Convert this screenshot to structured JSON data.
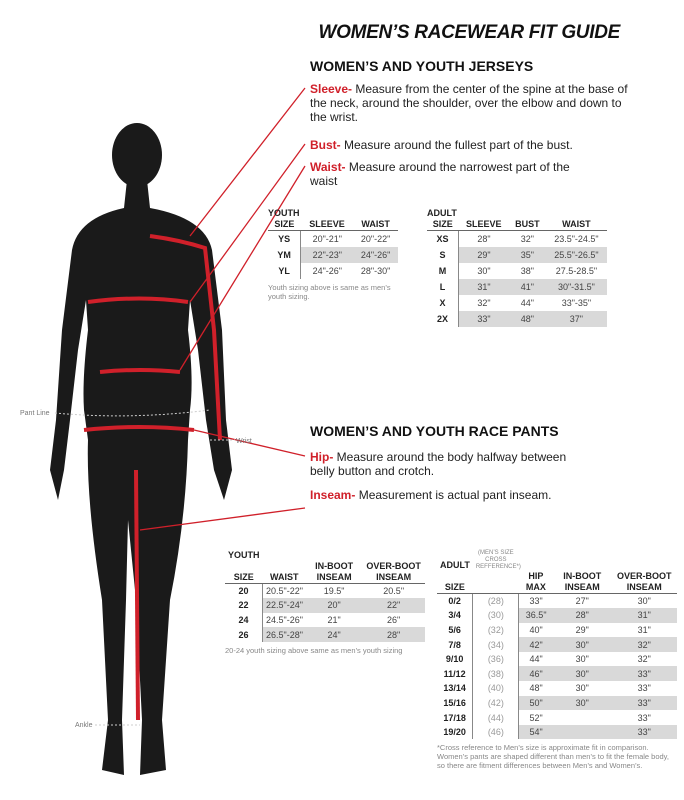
{
  "title": "WOMEN’S RACEWEAR FIT GUIDE",
  "colors": {
    "accent": "#d0202a",
    "silhouette": "#1a1a1a",
    "shade": "#d9d9d9"
  },
  "jerseys": {
    "heading": "WOMEN’S AND YOUTH JERSEYS",
    "measures": [
      {
        "term": "Sleeve-",
        "text": " Measure from the center of the spine at the base of the neck, around the shoulder, over the elbow and down to the wrist."
      },
      {
        "term": "Bust-",
        "text": " Measure around the fullest part of the bust."
      },
      {
        "term": "Waist-",
        "text": " Measure around the narrowest part of the waist"
      }
    ],
    "youth": {
      "caption": "YOUTH",
      "headers": [
        "SIZE",
        "SLEEVE",
        "WAIST"
      ],
      "rows": [
        [
          "YS",
          "20\"-21\"",
          "20\"-22\""
        ],
        [
          "YM",
          "22\"-23\"",
          "24\"-26\""
        ],
        [
          "YL",
          "24\"-26\"",
          "28\"-30\""
        ]
      ],
      "note": "Youth sizing above is same as men’s youth sizing."
    },
    "adult": {
      "caption": "ADULT",
      "headers": [
        "SIZE",
        "SLEEVE",
        "BUST",
        "WAIST"
      ],
      "rows": [
        [
          "XS",
          "28\"",
          "32\"",
          "23.5\"-24.5\""
        ],
        [
          "S",
          "29\"",
          "35\"",
          "25.5\"-26.5\""
        ],
        [
          "M",
          "30\"",
          "38\"",
          "27.5-28.5\""
        ],
        [
          "L",
          "31\"",
          "41\"",
          "30\"-31.5\""
        ],
        [
          "X",
          "32\"",
          "44\"",
          "33\"-35\""
        ],
        [
          "2X",
          "33\"",
          "48\"",
          "37\""
        ]
      ]
    }
  },
  "pants": {
    "heading": "WOMEN’S AND YOUTH RACE PANTS",
    "measures": [
      {
        "term": "Hip-",
        "text": " Measure around the body halfway between belly button and crotch."
      },
      {
        "term": "Inseam-",
        "text": " Measurement is actual pant inseam."
      }
    ],
    "youth": {
      "caption": "YOUTH",
      "headers": [
        "SIZE",
        "WAIST",
        "IN-BOOT INSEAM",
        "OVER-BOOT INSEAM"
      ],
      "rows": [
        [
          "20",
          "20.5\"-22\"",
          "19.5\"",
          "20.5\""
        ],
        [
          "22",
          "22.5\"-24\"",
          "20\"",
          "22\""
        ],
        [
          "24",
          "24.5\"-26\"",
          "21\"",
          "26\""
        ],
        [
          "26",
          "26.5\"-28\"",
          "24\"",
          "28\""
        ]
      ],
      "note": "20-24 youth sizing above same as men’s youth sizing"
    },
    "adult": {
      "caption": "ADULT",
      "ref_header": "(MEN’S SIZE CROSS REFFERENCE*)",
      "headers": [
        "SIZE",
        "",
        "HIP MAX",
        "IN-BOOT INSEAM",
        "OVER-BOOT INSEAM"
      ],
      "rows": [
        [
          "0/2",
          "(28)",
          "33\"",
          "27\"",
          "30\""
        ],
        [
          "3/4",
          "(30)",
          "36.5\"",
          "28\"",
          "31\""
        ],
        [
          "5/6",
          "(32)",
          "40\"",
          "29\"",
          "31\""
        ],
        [
          "7/8",
          "(34)",
          "42\"",
          "30\"",
          "32\""
        ],
        [
          "9/10",
          "(36)",
          "44\"",
          "30\"",
          "32\""
        ],
        [
          "11/12",
          "(38)",
          "46\"",
          "30\"",
          "33\""
        ],
        [
          "13/14",
          "(40)",
          "48\"",
          "30\"",
          "33\""
        ],
        [
          "15/16",
          "(42)",
          "50\"",
          "30\"",
          "33\""
        ],
        [
          "17/18",
          "(44)",
          "52\"",
          "",
          "33\""
        ],
        [
          "19/20",
          "(46)",
          "54\"",
          "",
          "33\""
        ]
      ],
      "note": "*Cross reference to Men’s size is approximate fit in comparison. Women’s pants are shaped different than men’s to fit the female body, so there are fitment differences between Men’s and Women’s."
    }
  },
  "figure": {
    "labels": {
      "pant_line": "Pant Line",
      "wrist": "Wrist",
      "ankle": "Ankle"
    }
  }
}
